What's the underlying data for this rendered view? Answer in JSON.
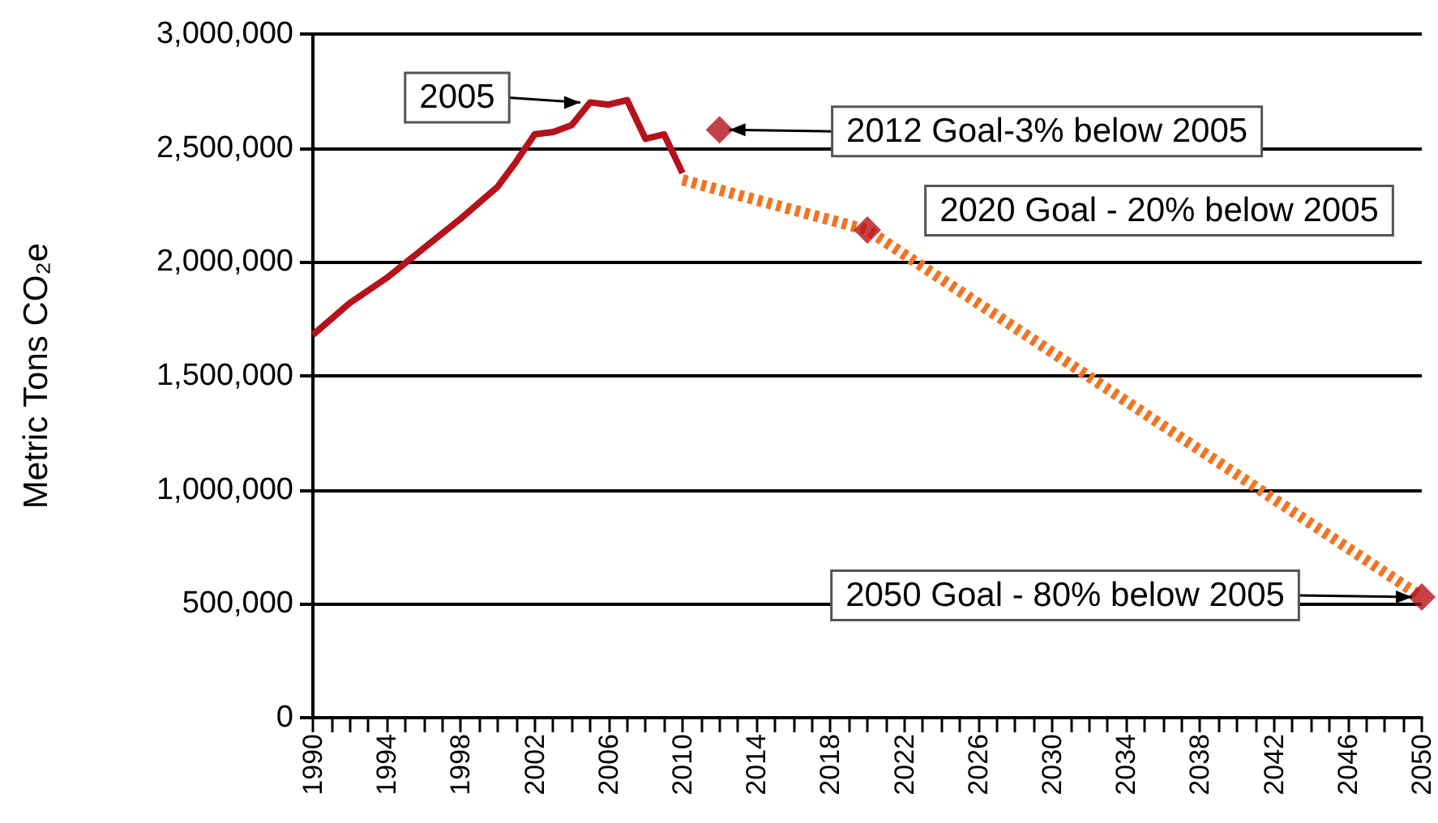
{
  "chart_data": {
    "type": "line",
    "ylabel": "Metric Tons CO₂e",
    "xlim": [
      1990,
      2050
    ],
    "xticks": [
      1990,
      {
        "value": 1991,
        "label": null
      },
      {
        "value": 1992,
        "label": null
      },
      {
        "value": 1993,
        "label": null
      },
      1994,
      {
        "value": 1995,
        "label": null
      },
      {
        "value": 1996,
        "label": null
      },
      {
        "value": 1997,
        "label": null
      },
      1998,
      {
        "value": 1999,
        "label": null
      },
      {
        "value": 2000,
        "label": null
      },
      {
        "value": 2001,
        "label": null
      },
      2002,
      {
        "value": 2003,
        "label": null
      },
      {
        "value": 2004,
        "label": null
      },
      {
        "value": 2005,
        "label": null
      },
      2006,
      {
        "value": 2007,
        "label": null
      },
      {
        "value": 2008,
        "label": null
      },
      {
        "value": 2009,
        "label": null
      },
      2010,
      {
        "value": 2011,
        "label": null
      },
      {
        "value": 2012,
        "label": null
      },
      {
        "value": 2013,
        "label": null
      },
      2014,
      {
        "value": 2015,
        "label": null
      },
      {
        "value": 2016,
        "label": null
      },
      {
        "value": 2017,
        "label": null
      },
      2018,
      {
        "value": 2019,
        "label": null
      },
      {
        "value": 2020,
        "label": null
      },
      {
        "value": 2021,
        "label": null
      },
      2022,
      {
        "value": 2023,
        "label": null
      },
      {
        "value": 2024,
        "label": null
      },
      {
        "value": 2025,
        "label": null
      },
      2026,
      {
        "value": 2027,
        "label": null
      },
      {
        "value": 2028,
        "label": null
      },
      {
        "value": 2029,
        "label": null
      },
      2030,
      {
        "value": 2031,
        "label": null
      },
      {
        "value": 2032,
        "label": null
      },
      {
        "value": 2033,
        "label": null
      },
      2034,
      {
        "value": 2035,
        "label": null
      },
      {
        "value": 2036,
        "label": null
      },
      {
        "value": 2037,
        "label": null
      },
      2038,
      {
        "value": 2039,
        "label": null
      },
      {
        "value": 2040,
        "label": null
      },
      {
        "value": 2041,
        "label": null
      },
      2042,
      {
        "value": 2043,
        "label": null
      },
      {
        "value": 2044,
        "label": null
      },
      {
        "value": 2045,
        "label": null
      },
      2046,
      {
        "value": 2047,
        "label": null
      },
      {
        "value": 2048,
        "label": null
      },
      {
        "value": 2049,
        "label": null
      },
      2050
    ],
    "ylim": [
      0,
      3000000
    ],
    "yticks": [
      0,
      {
        "value": 500000,
        "label": "500,000"
      },
      {
        "value": 1000000,
        "label": "1,000,000"
      },
      {
        "value": 1500000,
        "label": "1,500,000"
      },
      {
        "value": 2000000,
        "label": "2,000,000"
      },
      {
        "value": 2500000,
        "label": "2,500,000"
      },
      {
        "value": 3000000,
        "label": "3,000,000"
      }
    ],
    "grid": "y",
    "series": [
      {
        "color": "#b5121b",
        "marker": "none",
        "line_style": "solid",
        "x": [
          1990,
          1992,
          1994,
          1996,
          1998,
          2000,
          2001,
          2002,
          2003,
          2004,
          2005,
          2006,
          2007,
          2008,
          2009,
          2010
        ],
        "values": [
          1680000,
          1820000,
          1930000,
          2060000,
          2190000,
          2330000,
          2440000,
          2560000,
          2570000,
          2600000,
          2700000,
          2690000,
          2710000,
          2540000,
          2560000,
          2390000
        ]
      },
      {
        "color": "#f47321",
        "marker": "none",
        "line_style": "dashed",
        "x": [
          2010,
          2020,
          2050
        ],
        "values": [
          2360000,
          2140000,
          530000
        ]
      },
      {
        "type": "scatter",
        "color": "#b5121b",
        "marker": "diamond",
        "x": [
          2012,
          2020,
          2050
        ],
        "values": [
          2580000,
          2140000,
          530000
        ]
      }
    ],
    "annotations": [
      {
        "text": "2005",
        "x": 2005,
        "y": 2700000
      },
      {
        "text": "2012 Goal-3% below 2005",
        "x": 2012,
        "y": 2580000
      },
      {
        "text": "2020 Goal - 20% below 2005",
        "x": 2020,
        "y": 2140000
      },
      {
        "text": "2050 Goal - 80% below 2005",
        "x": 2050,
        "y": 530000
      }
    ]
  }
}
